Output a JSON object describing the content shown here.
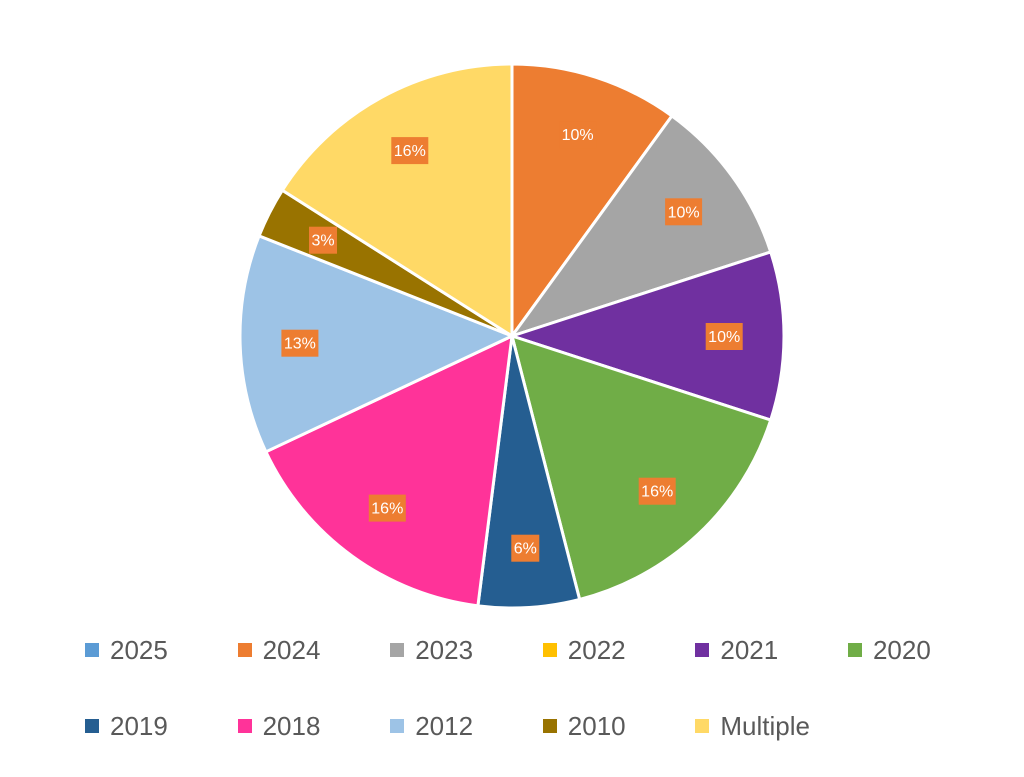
{
  "chart_data": {
    "type": "pie",
    "title": "",
    "legend_position": "bottom",
    "label_style": "percent",
    "slices": [
      {
        "label": "2025",
        "value": 0,
        "color": "#5B9BD5",
        "data_label": ""
      },
      {
        "label": "2024",
        "value": 10,
        "color": "#ED7D31",
        "data_label": "10%"
      },
      {
        "label": "2023",
        "value": 10,
        "color": "#A5A5A5",
        "data_label": "10%"
      },
      {
        "label": "2022",
        "value": 0,
        "color": "#FFC000",
        "data_label": ""
      },
      {
        "label": "2021",
        "value": 10,
        "color": "#7030A0",
        "data_label": "10%"
      },
      {
        "label": "2020",
        "value": 16,
        "color": "#70AD47",
        "data_label": "16%"
      },
      {
        "label": "2019",
        "value": 6,
        "color": "#255E91",
        "data_label": "6%"
      },
      {
        "label": "2018",
        "value": 16,
        "color": "#FF3399",
        "data_label": "16%"
      },
      {
        "label": "2012",
        "value": 13,
        "color": "#9DC3E6",
        "data_label": "13%"
      },
      {
        "label": "2010",
        "value": 3,
        "color": "#997300",
        "data_label": "3%"
      },
      {
        "label": "Multiple",
        "value": 16,
        "color": "#FFD966",
        "data_label": "16%"
      }
    ]
  }
}
